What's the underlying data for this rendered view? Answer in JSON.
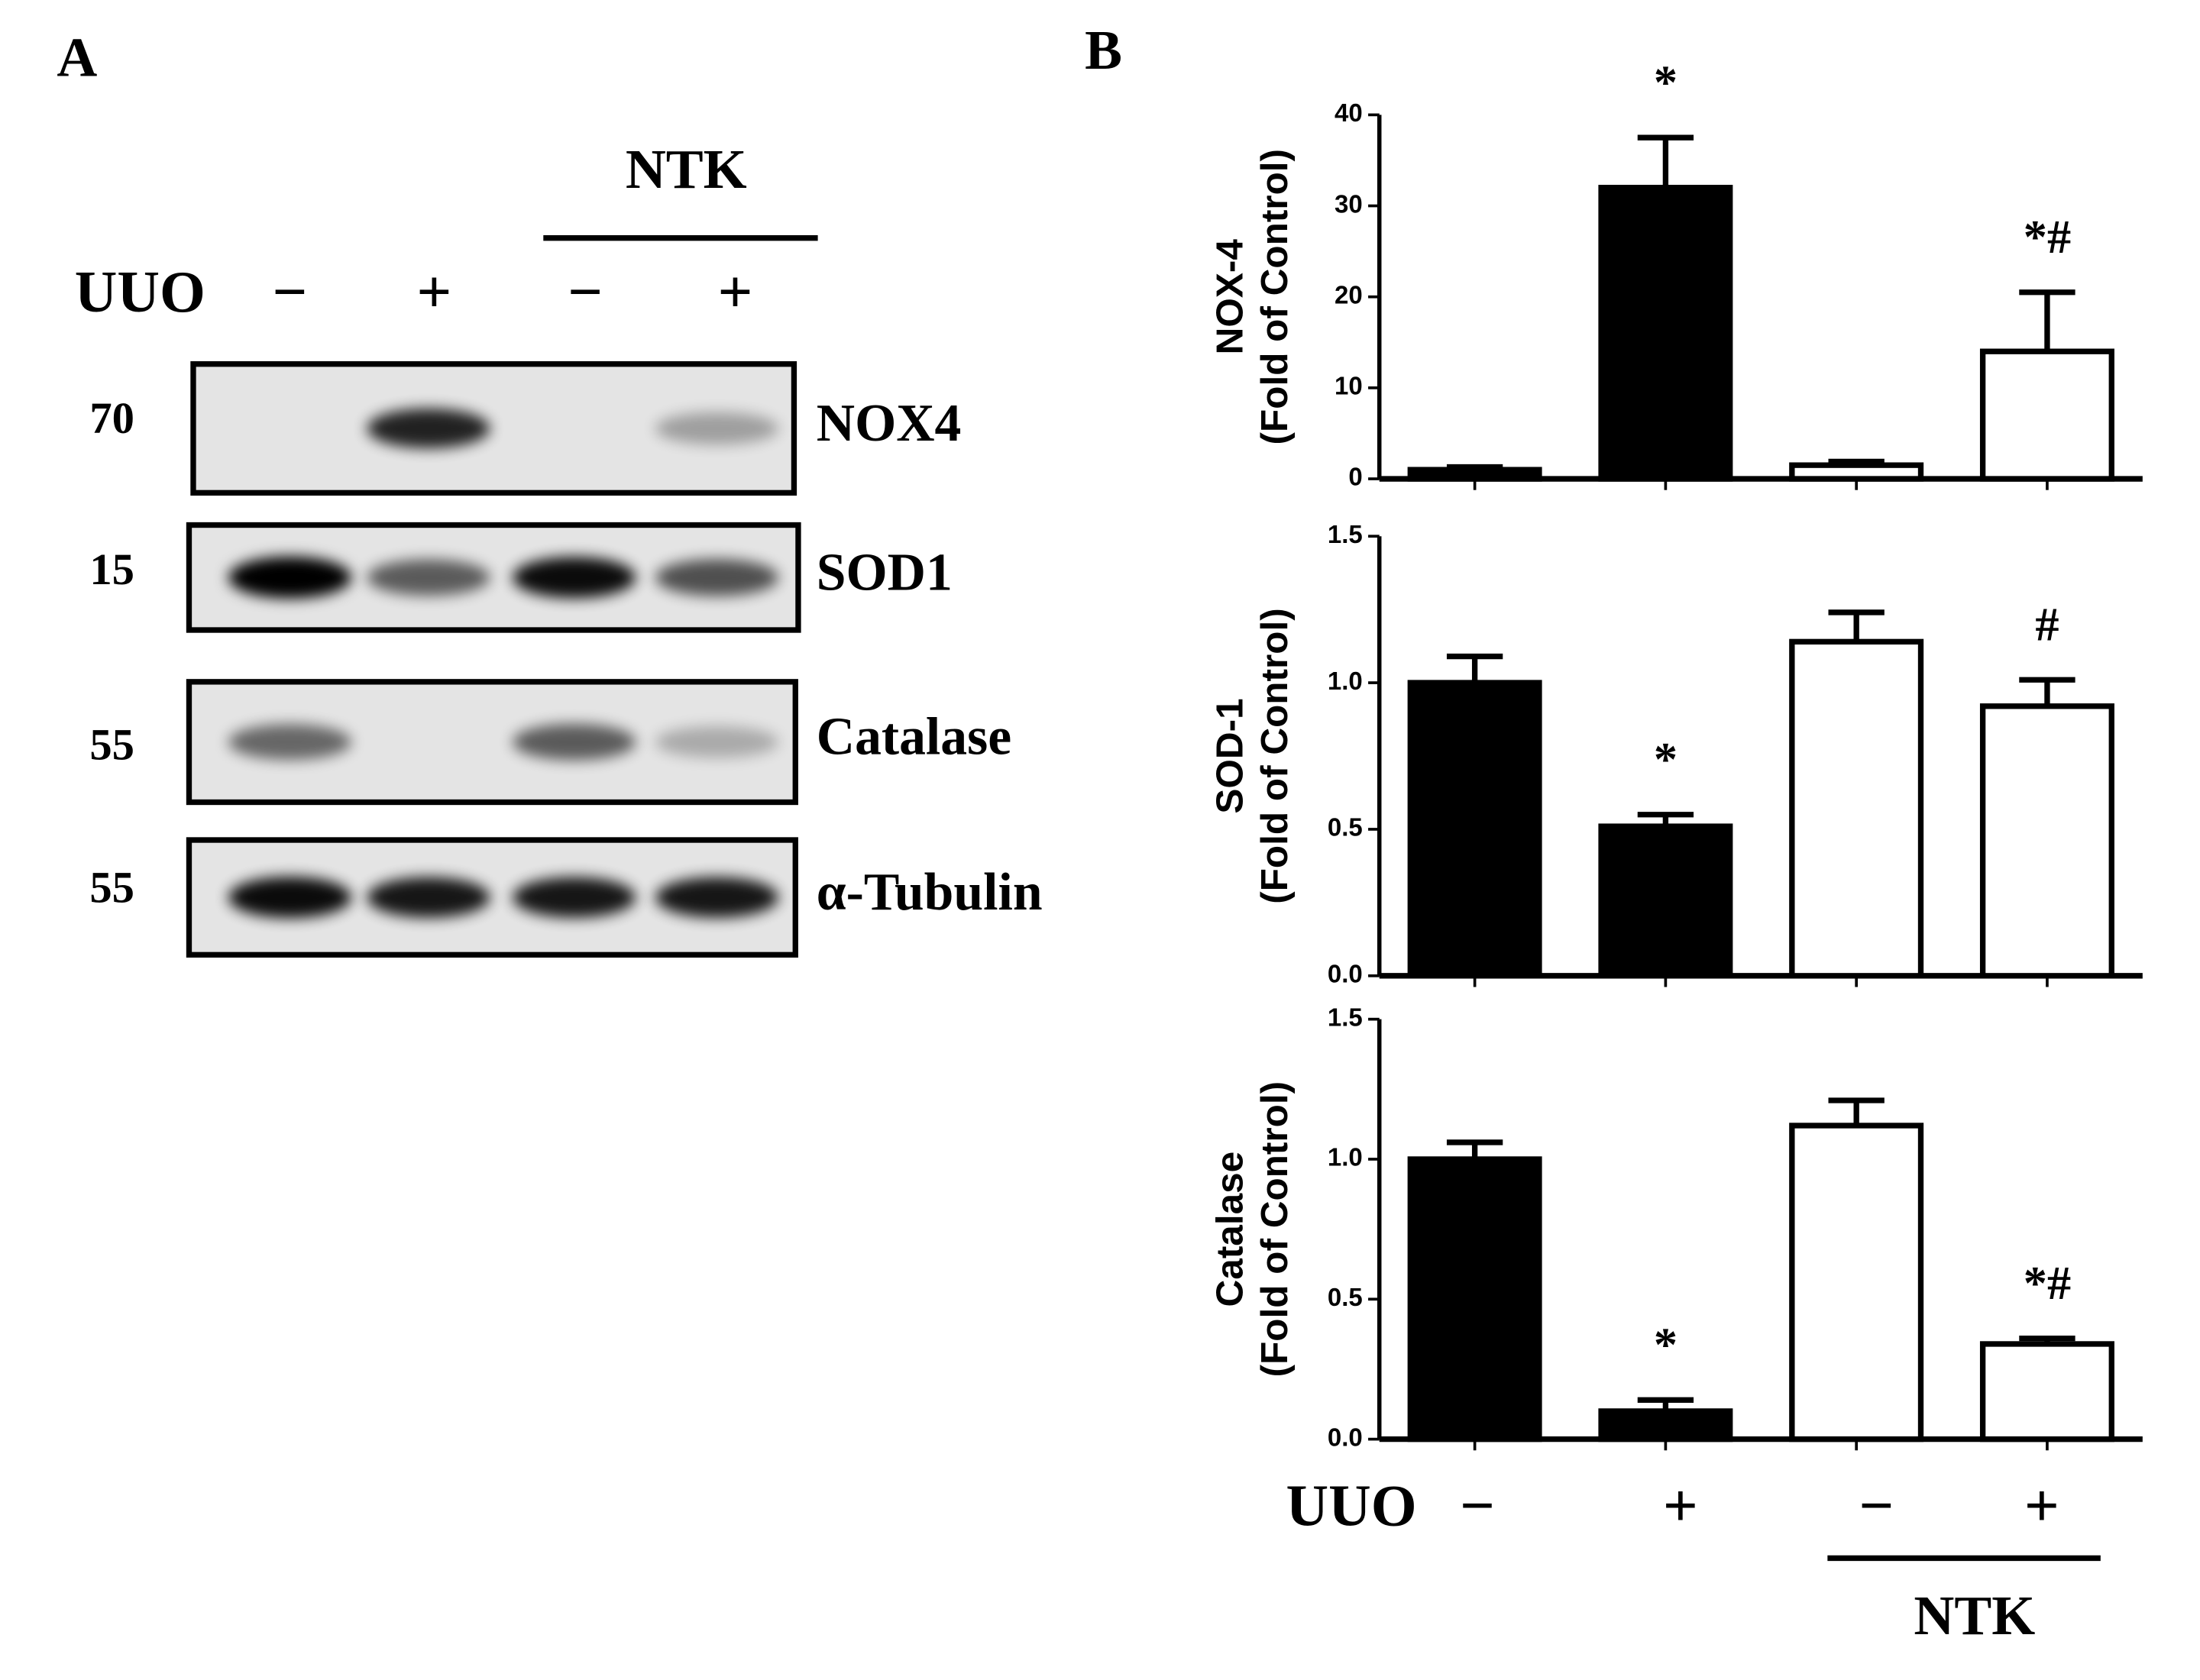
{
  "panel_labels": [
    "A",
    "B"
  ],
  "blot": {
    "group_label": "NTK",
    "row_label": "UUO",
    "lanes": [
      "−",
      "+",
      "−",
      "+"
    ],
    "rows": [
      {
        "marker": "70",
        "name": "NOX4"
      },
      {
        "marker": "15",
        "name": "SOD1"
      },
      {
        "marker": "55",
        "name": "Catalase"
      },
      {
        "marker": "55",
        "name": "α-Tubulin"
      }
    ]
  },
  "chart_data": [
    {
      "type": "bar",
      "ylabel": [
        "NOX-4",
        "(Fold of Control)"
      ],
      "categories": [
        null,
        null,
        null,
        null
      ],
      "values": [
        1,
        32,
        1.5,
        14
      ],
      "errors": [
        0.3,
        5.5,
        0.4,
        6.5
      ],
      "colors": [
        "#000000",
        "#000000",
        "#ffffff",
        "#ffffff"
      ],
      "annotations": [
        null,
        "*",
        null,
        "*#"
      ],
      "ylim": [
        0,
        40
      ],
      "yticks": [
        0,
        10,
        20,
        30,
        40
      ]
    },
    {
      "type": "bar",
      "ylabel": [
        "SOD-1",
        "(Fold of Control)"
      ],
      "categories": [
        null,
        null,
        null,
        null
      ],
      "values": [
        1.0,
        0.51,
        1.14,
        0.92
      ],
      "errors": [
        0.09,
        0.04,
        0.1,
        0.09
      ],
      "colors": [
        "#000000",
        "#000000",
        "#ffffff",
        "#ffffff"
      ],
      "annotations": [
        null,
        "*",
        null,
        "#"
      ],
      "ylim": [
        0,
        1.5
      ],
      "yticks": [
        {
          "value": 0,
          "label": "0.0"
        },
        0.5,
        {
          "value": 1,
          "label": "1.0"
        },
        1.5
      ]
    },
    {
      "type": "bar",
      "ylabel": [
        "Catalase",
        "(Fold of Control)"
      ],
      "categories": [
        "−",
        "+",
        "−",
        "+"
      ],
      "xlabel": "UUO",
      "group_label": "NTK",
      "values": [
        1.0,
        0.1,
        1.12,
        0.34
      ],
      "errors": [
        0.06,
        0.04,
        0.09,
        0.02
      ],
      "colors": [
        "#000000",
        "#000000",
        "#ffffff",
        "#ffffff"
      ],
      "annotations": [
        null,
        "*",
        null,
        "*#"
      ],
      "ylim": [
        0,
        1.5
      ],
      "yticks": [
        {
          "value": 0,
          "label": "0.0"
        },
        0.5,
        {
          "value": 1,
          "label": "1.0"
        },
        1.5
      ]
    }
  ]
}
